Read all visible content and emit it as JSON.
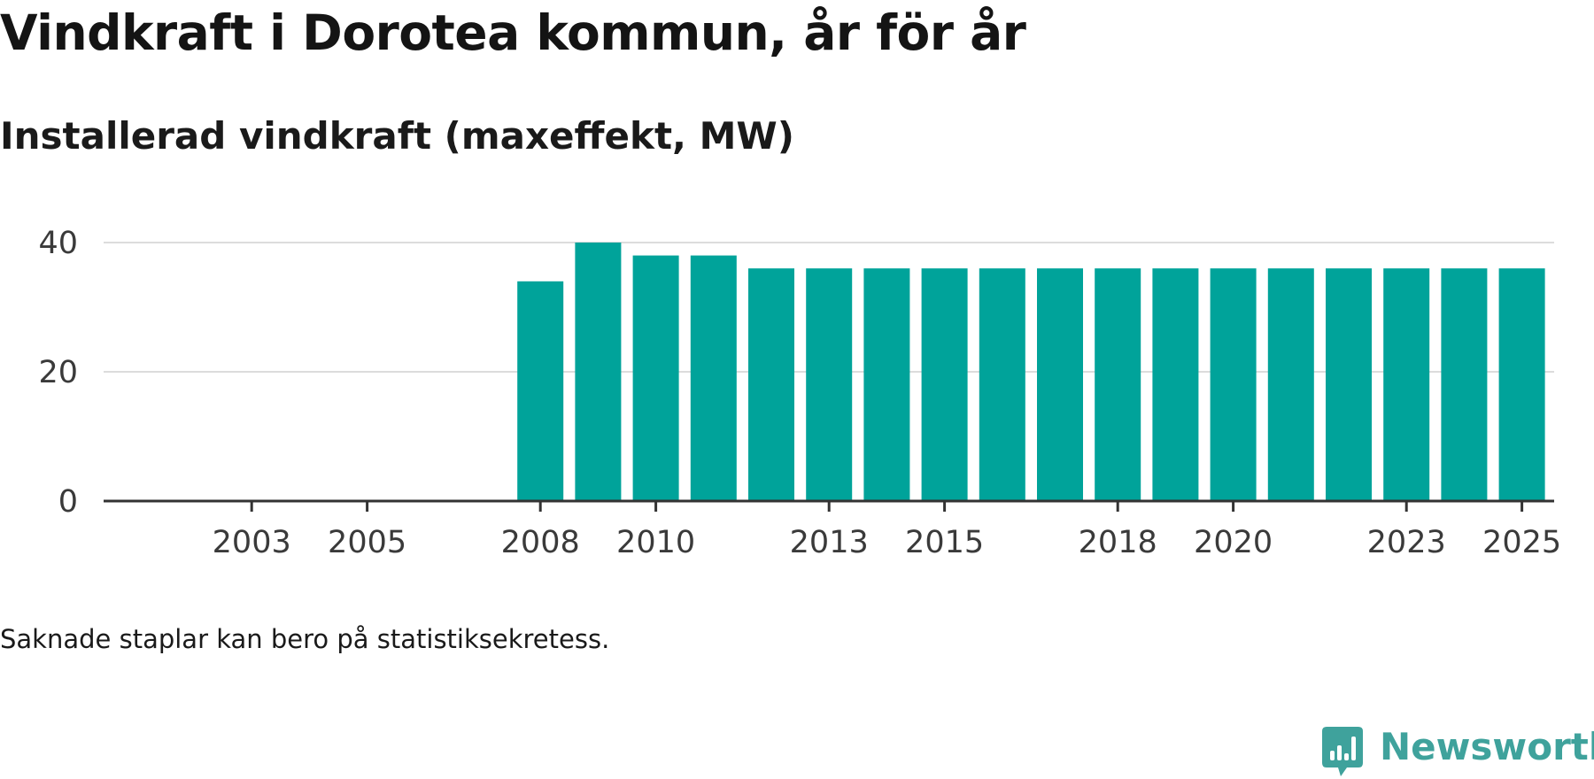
{
  "chart_data": {
    "type": "bar",
    "title": "Vindkraft i Dorotea kommun, år för år",
    "subtitle": "Installerad vindkraft (maxeffekt, MW)",
    "xlabel": "",
    "ylabel": "",
    "categories": [
      2002,
      2003,
      2004,
      2005,
      2006,
      2007,
      2008,
      2009,
      2010,
      2011,
      2012,
      2013,
      2014,
      2015,
      2016,
      2017,
      2018,
      2019,
      2020,
      2021,
      2022,
      2023,
      2024,
      2025
    ],
    "values": [
      null,
      null,
      null,
      null,
      null,
      null,
      34,
      40,
      38,
      38,
      36,
      36,
      36,
      36,
      36,
      36,
      36,
      36,
      36,
      36,
      36,
      36,
      36,
      36
    ],
    "x_tick_labels": [
      "2003",
      "2005",
      "2008",
      "2010",
      "2013",
      "2015",
      "2018",
      "2020",
      "2023",
      "2025"
    ],
    "y_tick_labels": [
      "0",
      "20",
      "40"
    ],
    "yticks": [
      0,
      20,
      40
    ],
    "ylim": [
      0,
      40
    ],
    "grid": true,
    "bar_color": "#00a39a"
  },
  "footnote": "Saknade staplar kan bero på statistiksekretess.",
  "brand": {
    "name": "Newsworthy",
    "icon": "newsworthy-logo-icon",
    "color": "#3fa29c"
  }
}
